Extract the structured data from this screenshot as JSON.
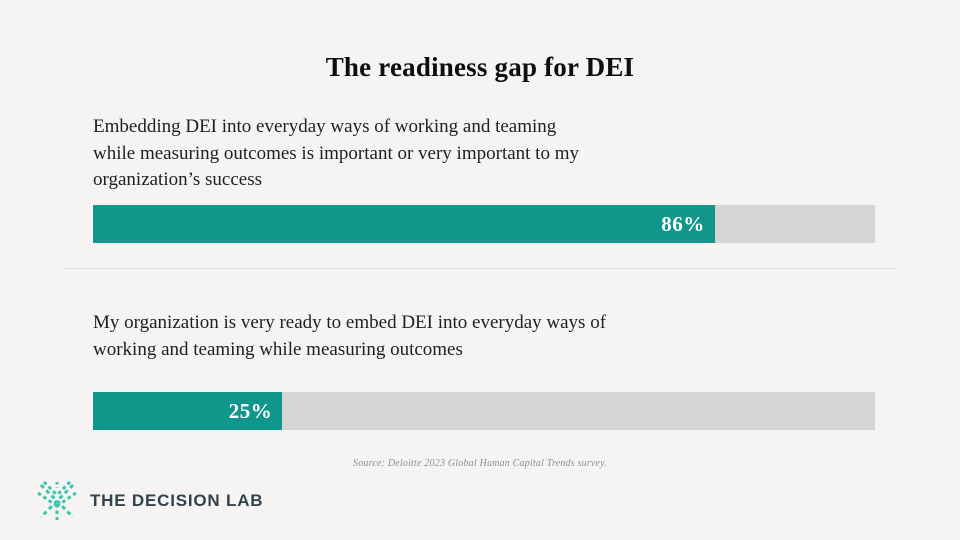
{
  "title": "The readiness gap for DEI",
  "chart_data": {
    "type": "bar",
    "orientation": "horizontal",
    "unit": "%",
    "xlim": [
      0,
      100
    ],
    "grid": false,
    "legend": "none",
    "bars": [
      {
        "label": "Embedding DEI into everyday ways of working and teaming while measuring outcomes is important or very important to my organization’s success",
        "value": 86,
        "value_label": "86%",
        "visual_fill_pct": 79.5
      },
      {
        "label": "My organization is very ready to embed DEI into everyday ways of working and teaming while measuring outcomes",
        "value": 25,
        "value_label": "25%",
        "visual_fill_pct": 24.2
      }
    ],
    "colors": {
      "fill": "#10968a",
      "track": "#d5d5d3"
    }
  },
  "source_note": "Source: Deloitte 2023 Global Human Capital Trends survey.",
  "footer": {
    "brand_name": "THE DECISION LAB",
    "logo_icon": "starburst-dashes-icon",
    "logo_color": "#3fc3ac",
    "brand_text_color": "#31424b"
  },
  "colors": {
    "background": "#f5f4f2",
    "title_text": "#0e0e0e",
    "statement_text": "#1f1f1f",
    "divider": "#dddddc",
    "value_label_text": "#ffffff"
  }
}
